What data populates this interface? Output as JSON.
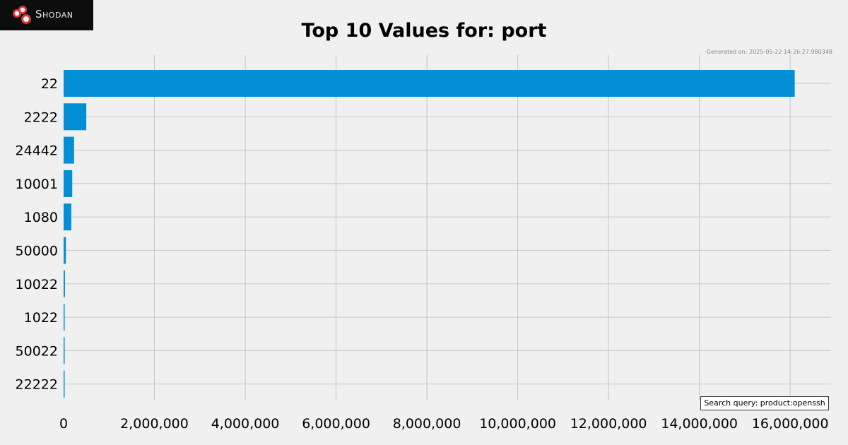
{
  "brand": {
    "name": "Shodan",
    "accent": "#d9343a"
  },
  "generated": "Generated on: 2025-05-22 14:26:27.980348",
  "query": "Search query: product:openssh",
  "chart_data": {
    "type": "bar",
    "orientation": "horizontal",
    "title": "Top 10 Values for: port",
    "xlabel": "",
    "ylabel": "",
    "categories": [
      "22",
      "2222",
      "24442",
      "10001",
      "1080",
      "50000",
      "10022",
      "1022",
      "50022",
      "22222"
    ],
    "values": [
      16100000,
      500000,
      230000,
      190000,
      170000,
      50000,
      30000,
      15000,
      12000,
      10000
    ],
    "xlim": [
      0,
      16900000
    ],
    "xticks": [
      0,
      2000000,
      4000000,
      6000000,
      8000000,
      10000000,
      12000000,
      14000000,
      16000000
    ],
    "xtick_labels": [
      "0",
      "2,000,000",
      "4,000,000",
      "6,000,000",
      "8,000,000",
      "10,000,000",
      "12,000,000",
      "14,000,000",
      "16,000,000"
    ],
    "bar_color": "#038fd6",
    "grid": true
  }
}
